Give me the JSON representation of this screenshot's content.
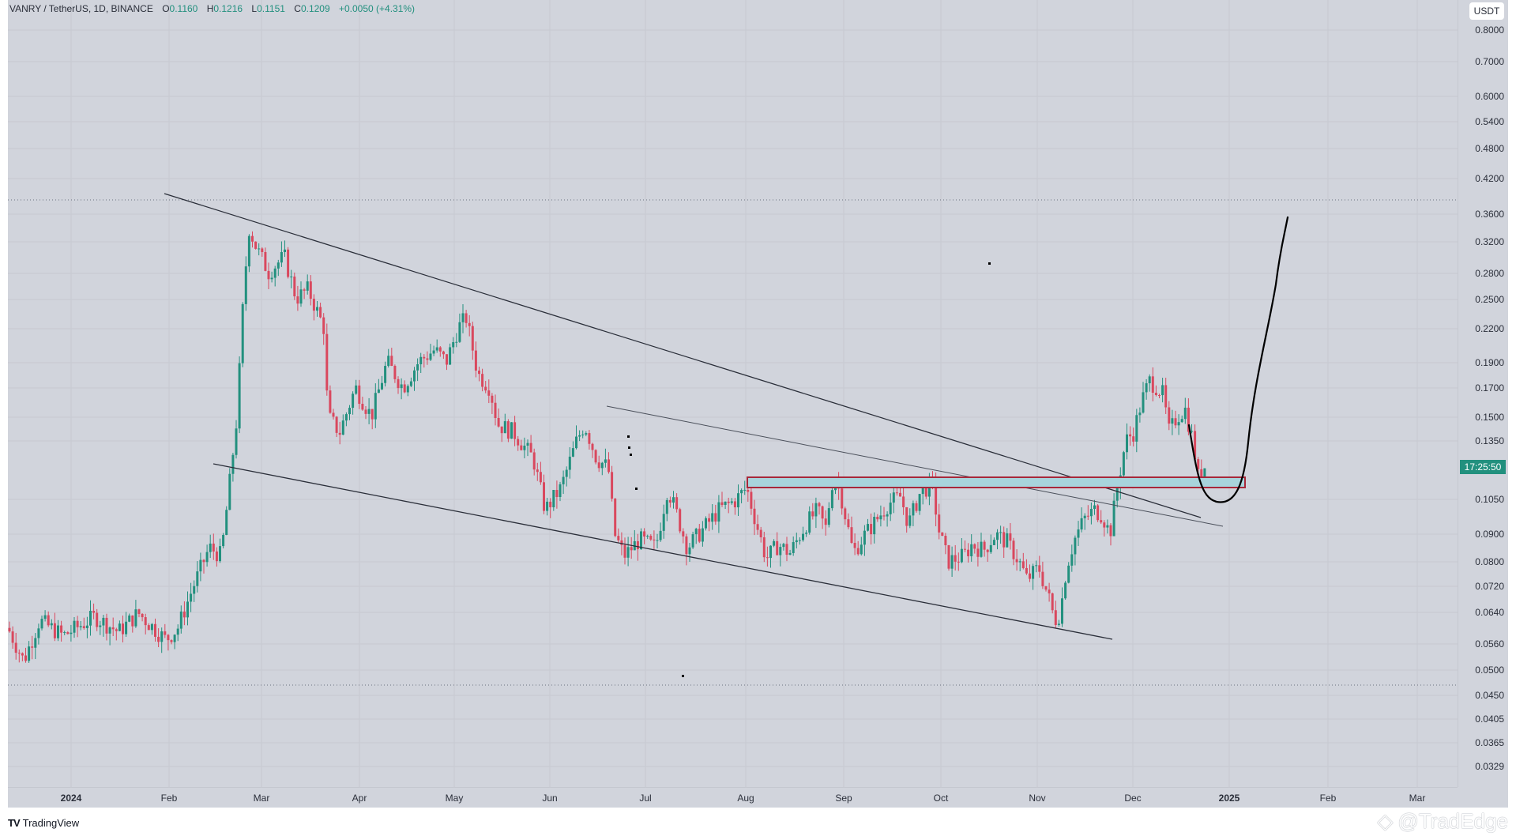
{
  "legend": {
    "symbol": "VANRY / TetherUS, 1D, BINANCE",
    "open_label": "O",
    "open": "0.1160",
    "high_label": "H",
    "high": "0.1216",
    "low_label": "L",
    "low": "0.1151",
    "close_label": "C",
    "close": "0.1209",
    "change": "+0.0050 (+4.31%)"
  },
  "price_axis": {
    "currency_button": "USDT",
    "countdown": "17:25:50",
    "labels": [
      "0.8000",
      "0.7000",
      "0.6000",
      "0.5400",
      "0.4800",
      "0.4200",
      "0.3600",
      "0.3200",
      "0.2800",
      "0.2500",
      "0.2200",
      "0.1900",
      "0.1700",
      "0.1500",
      "0.1350",
      "0.1050",
      "0.0900",
      "0.0800",
      "0.0720",
      "0.0640",
      "0.0560",
      "0.0500",
      "0.0450",
      "0.0405",
      "0.0365",
      "0.0329"
    ]
  },
  "time_axis": {
    "labels": [
      "2024",
      "Feb",
      "Mar",
      "Apr",
      "May",
      "Jun",
      "Jul",
      "Aug",
      "Sep",
      "Oct",
      "Nov",
      "Dec",
      "2025",
      "Feb",
      "Mar"
    ]
  },
  "footer": {
    "brand": "TradingView",
    "watermark": "@TradEdge"
  },
  "colors": {
    "up": "#22907e",
    "down": "#d9485e",
    "background": "#d1d4dc",
    "zone_fill": "#a8d4dc",
    "zone_border": "#a8283a"
  },
  "chart_data": {
    "type": "candlestick",
    "title": "VANRY / TetherUS, 1D, BINANCE",
    "xlabel": "",
    "ylabel": "USDT",
    "y_scale": "log",
    "ylim": [
      0.031,
      0.82
    ],
    "x_ticks": [
      "2024",
      "Feb",
      "Mar",
      "Apr",
      "May",
      "Jun",
      "Jul",
      "Aug",
      "Sep",
      "Oct",
      "Nov",
      "Dec",
      "2025",
      "Feb",
      "Mar"
    ],
    "y_ticks": [
      0.8,
      0.7,
      0.6,
      0.54,
      0.48,
      0.42,
      0.36,
      0.32,
      0.28,
      0.25,
      0.22,
      0.19,
      0.17,
      0.15,
      0.135,
      0.105,
      0.09,
      0.08,
      0.072,
      0.064,
      0.056,
      0.05,
      0.045,
      0.0405,
      0.0365,
      0.0329
    ],
    "last_bar": {
      "open": 0.116,
      "high": 0.1216,
      "low": 0.1151,
      "close": 0.1209,
      "change": 0.005,
      "change_pct": 4.31
    },
    "approx_monthly_closes": {
      "x": [
        "2024-01",
        "2024-02",
        "2024-03",
        "2024-04",
        "2024-05",
        "2024-06",
        "2024-07",
        "2024-08",
        "2024-09",
        "2024-10",
        "2024-11",
        "2024-12"
      ],
      "values": [
        0.058,
        0.075,
        0.29,
        0.17,
        0.2,
        0.135,
        0.12,
        0.092,
        0.112,
        0.072,
        0.118,
        0.121
      ]
    },
    "key_levels": {
      "cycle_high": 0.38,
      "cycle_low": 0.047,
      "march_peak": 0.38,
      "nov_low": 0.058,
      "dec_high": 0.185
    },
    "annotations": [
      {
        "type": "horizontal_dotted",
        "price": 0.38,
        "label": "range high"
      },
      {
        "type": "horizontal_dotted",
        "price": 0.047,
        "label": "range low"
      },
      {
        "type": "trendline",
        "name": "upper-channel",
        "from": [
          "2024-02-10",
          0.385
        ],
        "to": [
          "2024-12-20",
          0.1
        ]
      },
      {
        "type": "trendline",
        "name": "lower-channel",
        "from": [
          "2024-02-15",
          0.12
        ],
        "to": [
          "2024-11-25",
          0.057
        ]
      },
      {
        "type": "trendline",
        "name": "inner-resistance",
        "from": [
          "2024-06-18",
          0.158
        ],
        "to": [
          "2024-12-28",
          0.096
        ]
      },
      {
        "type": "zone",
        "name": "support-box",
        "price_top": 0.116,
        "price_bottom": 0.11,
        "from": "2024-08-01",
        "to": "2025-01-08"
      },
      {
        "type": "projection_curve",
        "desc": "dip into zone then rally toward ~0.35",
        "target": 0.355
      }
    ],
    "legend_position": "top-left",
    "grid": true
  }
}
